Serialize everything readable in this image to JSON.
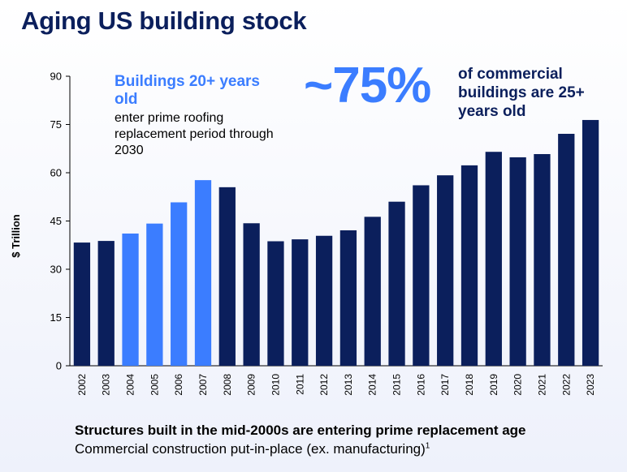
{
  "title": "Aging US building stock",
  "annotation_left": {
    "heading": "Buildings 20+ years old",
    "body": "enter prime roofing replacement period through 2030"
  },
  "annotation_right": {
    "big_number": "~75%",
    "text": "of commercial buildings are 25+ years old"
  },
  "footer": {
    "headline": "Structures built in the mid-2000s are entering prime replacement age",
    "subtitle": "Commercial construction put-in-place (ex. manufacturing)",
    "footnote_marker": "1"
  },
  "colors": {
    "dark": "#0b1f5c",
    "highlight": "#3b7dff"
  },
  "chart_data": {
    "type": "bar",
    "ylabel": "$ Trillion",
    "xlabel": "",
    "ylim": [
      0,
      90
    ],
    "yticks": [
      0,
      15,
      30,
      45,
      60,
      75,
      90
    ],
    "grid": false,
    "categories": [
      "2002",
      "2003",
      "2004",
      "2005",
      "2006",
      "2007",
      "2008",
      "2009",
      "2010",
      "2011",
      "2012",
      "2013",
      "2014",
      "2015",
      "2016",
      "2017",
      "2018",
      "2019",
      "2020",
      "2021",
      "2022",
      "2023"
    ],
    "values": [
      38.3,
      38.8,
      41.1,
      44.2,
      50.8,
      57.7,
      55.5,
      44.3,
      38.7,
      39.3,
      40.4,
      42.1,
      46.3,
      51.0,
      56.1,
      59.2,
      62.3,
      66.5,
      64.8,
      65.8,
      72.1,
      76.4
    ],
    "highlighted_categories": [
      "2004",
      "2005",
      "2006",
      "2007"
    ]
  }
}
